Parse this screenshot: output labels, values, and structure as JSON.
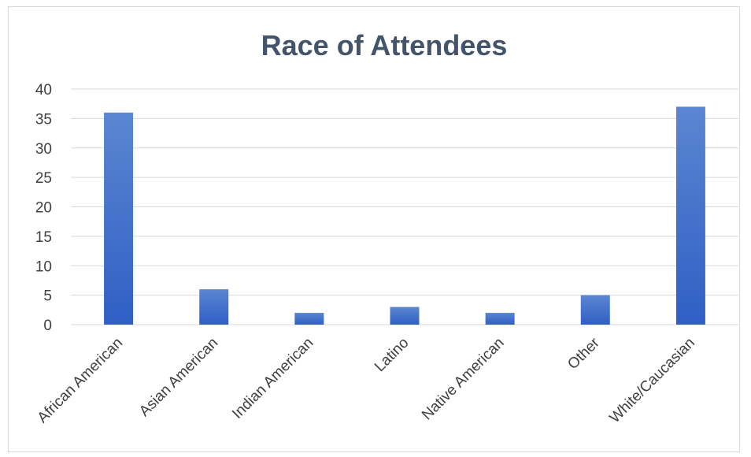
{
  "chart_data": {
    "type": "bar",
    "title": "Race of Attendees",
    "xlabel": "",
    "ylabel": "",
    "categories": [
      "African American",
      "Asian American",
      "Indian American",
      "Latino",
      "Native American",
      "Other",
      "White/Caucasian"
    ],
    "values": [
      36,
      6,
      2,
      3,
      2,
      5,
      37
    ],
    "ylim": [
      0,
      40
    ],
    "yticks": [
      0,
      5,
      10,
      15,
      20,
      25,
      30,
      35,
      40
    ],
    "grid": true,
    "legend": "none",
    "colors": {
      "bar_top": "#5b86d1",
      "bar_bottom": "#2f5fc4",
      "title": "#44546a",
      "text": "#404040",
      "grid": "#d9d9d9"
    }
  }
}
